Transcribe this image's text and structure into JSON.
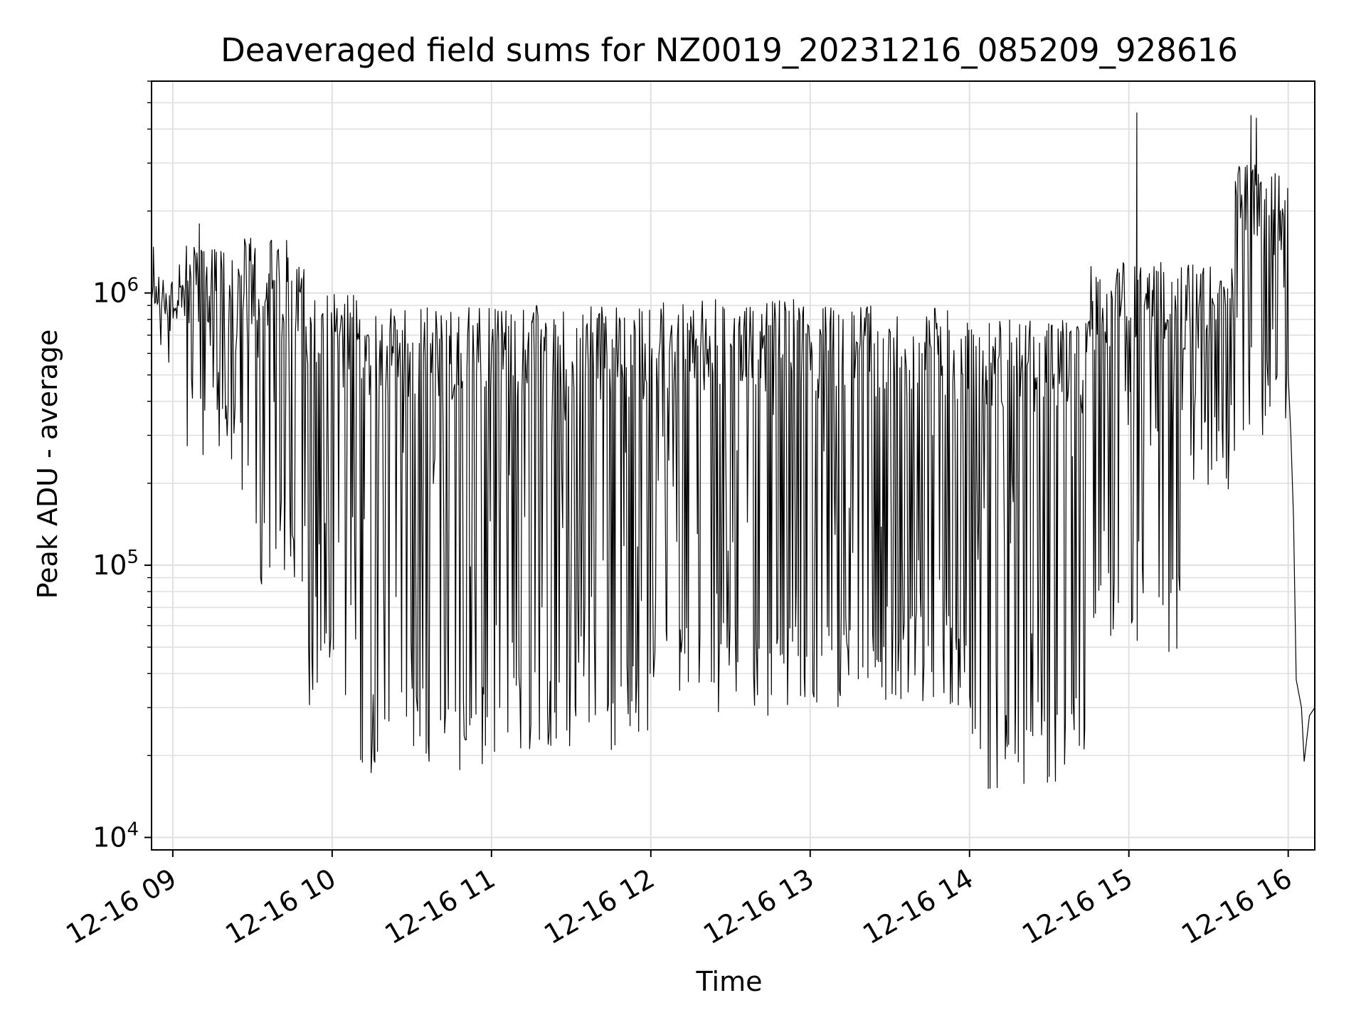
{
  "chart_data": {
    "type": "line",
    "title": "Deaveraged field sums for NZ0019_20231216_085209_928616",
    "xlabel": "Time",
    "ylabel": "Peak ADU - average",
    "yscale": "log",
    "ylim": [
      9000,
      6000000
    ],
    "xlim": [
      "2023-12-16 08:52",
      "2023-12-16 16:10"
    ],
    "grid": true,
    "x_ticks": [
      "12-16 09",
      "12-16 10",
      "12-16 11",
      "12-16 12",
      "12-16 13",
      "12-16 14",
      "12-16 15",
      "12-16 16"
    ],
    "y_ticks": [
      {
        "value": 10000,
        "base": "10",
        "exp": "4"
      },
      {
        "value": 100000,
        "base": "10",
        "exp": "5"
      },
      {
        "value": 1000000,
        "base": "10",
        "exp": "6"
      }
    ],
    "line_color": "#000000",
    "segments": [
      {
        "start": "2023-12-16 08:52",
        "end": "2023-12-16 09:05",
        "upper": 1200000,
        "lower": 800000
      },
      {
        "start": "2023-12-16 09:05",
        "end": "2023-12-16 09:25",
        "upper": 1500000,
        "lower": 200000
      },
      {
        "start": "2023-12-16 09:25",
        "end": "2023-12-16 09:50",
        "upper": 1600000,
        "lower": 80000
      },
      {
        "start": "2023-12-16 09:50",
        "end": "2023-12-16 10:10",
        "upper": 1000000,
        "lower": 26000
      },
      {
        "start": "2023-12-16 10:10",
        "end": "2023-12-16 11:00",
        "upper": 900000,
        "lower": 17000
      },
      {
        "start": "2023-12-16 11:00",
        "end": "2023-12-16 12:00",
        "upper": 900000,
        "lower": 20000
      },
      {
        "start": "2023-12-16 12:00",
        "end": "2023-12-16 13:00",
        "upper": 950000,
        "lower": 28000
      },
      {
        "start": "2023-12-16 13:00",
        "end": "2023-12-16 14:00",
        "upper": 900000,
        "lower": 30000
      },
      {
        "start": "2023-12-16 14:00",
        "end": "2023-12-16 14:45",
        "upper": 800000,
        "lower": 15000
      },
      {
        "start": "2023-12-16 14:45",
        "end": "2023-12-16 15:20",
        "upper": 1300000,
        "lower": 45000
      },
      {
        "start": "2023-12-16 15:20",
        "end": "2023-12-16 15:40",
        "upper": 1300000,
        "lower": 180000
      },
      {
        "start": "2023-12-16 15:40",
        "end": "2023-12-16 16:00",
        "upper": 3000000,
        "lower": 300000
      }
    ],
    "spikes": [
      {
        "t": "2023-12-16 09:10",
        "value": 1800000
      },
      {
        "t": "2023-12-16 15:03",
        "value": 4600000
      },
      {
        "t": "2023-12-16 15:46",
        "value": 4500000
      },
      {
        "t": "2023-12-16 15:48",
        "value": 4400000
      }
    ],
    "tail": [
      {
        "t": "2023-12-16 16:00",
        "value": 500000
      },
      {
        "t": "2023-12-16 16:01",
        "value": 300000
      },
      {
        "t": "2023-12-16 16:02",
        "value": 150000
      },
      {
        "t": "2023-12-16 16:03",
        "value": 38000
      },
      {
        "t": "2023-12-16 16:05",
        "value": 30000
      },
      {
        "t": "2023-12-16 16:06",
        "value": 19000
      },
      {
        "t": "2023-12-16 16:08",
        "value": 28000
      },
      {
        "t": "2023-12-16 16:10",
        "value": 30000
      }
    ]
  }
}
